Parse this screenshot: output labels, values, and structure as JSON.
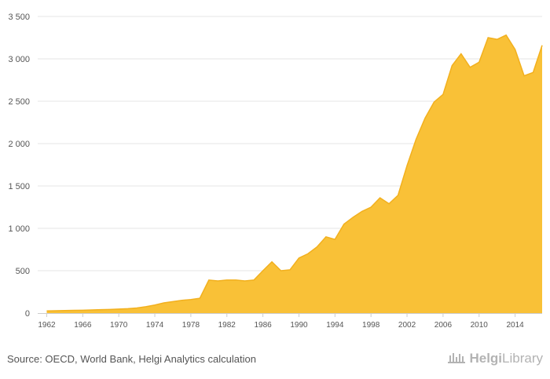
{
  "chart_data": {
    "type": "area",
    "title": "",
    "xlabel": "",
    "ylabel": "",
    "ylim": [
      0,
      3500
    ],
    "yticks": [
      0,
      500,
      1000,
      1500,
      2000,
      2500,
      3000,
      3500
    ],
    "ytick_labels": [
      "0",
      "500",
      "1 000",
      "1 500",
      "2 000",
      "2 500",
      "3 000",
      "3 500"
    ],
    "xlim": [
      1961,
      2017
    ],
    "xticks": [
      1962,
      1966,
      1970,
      1974,
      1978,
      1982,
      1986,
      1990,
      1994,
      1998,
      2002,
      2006,
      2010,
      2014
    ],
    "xtick_labels": [
      "1962",
      "1966",
      "1970",
      "1974",
      "1978",
      "1982",
      "1986",
      "1990",
      "1994",
      "1998",
      "2002",
      "2006",
      "2010",
      "2014"
    ],
    "grid": true,
    "colors": {
      "fill": "#F9C137",
      "line": "#F2B01E"
    },
    "series": [
      {
        "x": [
          1962,
          1963,
          1964,
          1965,
          1966,
          1967,
          1968,
          1969,
          1970,
          1971,
          1972,
          1973,
          1974,
          1975,
          1976,
          1977,
          1978,
          1979,
          1980,
          1981,
          1982,
          1983,
          1984,
          1985,
          1986,
          1987,
          1988,
          1989,
          1990,
          1991,
          1992,
          1993,
          1994,
          1995,
          1996,
          1997,
          1998,
          1999,
          2000,
          2001,
          2002,
          2003,
          2004,
          2005,
          2006,
          2007,
          2008,
          2009,
          2010,
          2011,
          2012,
          2013,
          2014,
          2015,
          2016,
          2017
        ],
        "values": [
          25,
          28,
          30,
          32,
          34,
          37,
          40,
          43,
          48,
          52,
          60,
          75,
          95,
          120,
          135,
          150,
          160,
          175,
          390,
          380,
          390,
          390,
          380,
          390,
          500,
          605,
          500,
          510,
          650,
          700,
          780,
          900,
          870,
          1050,
          1130,
          1200,
          1250,
          1360,
          1290,
          1390,
          1740,
          2050,
          2300,
          2490,
          2580,
          2920,
          3060,
          2900,
          2960,
          3250,
          3230,
          3280,
          3110,
          2800,
          2840,
          3160
        ]
      }
    ]
  },
  "footer": {
    "source": "Source: OECD, World Bank, Helgi Analytics calculation",
    "logo_strong": "Helgi",
    "logo_light": "Library"
  }
}
